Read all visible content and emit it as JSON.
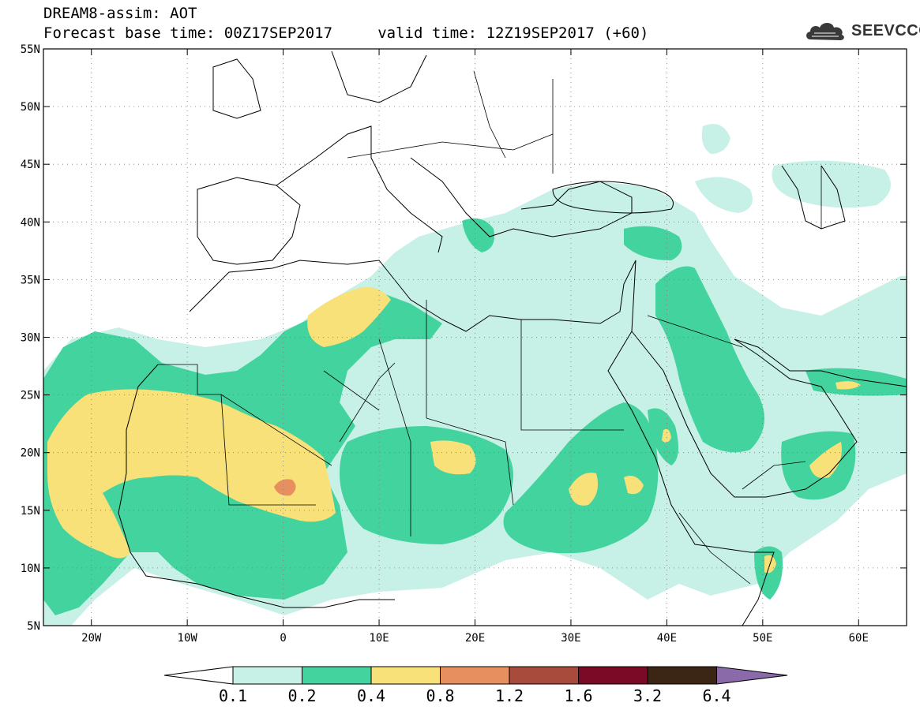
{
  "header": {
    "line1": "DREAM8-assim: AOT",
    "line2": "Forecast base time: 00Z17SEP2017     valid time: 12Z19SEP2017 (+60)"
  },
  "logo": {
    "icon": "cloud-icon",
    "text": "SEEVCCC"
  },
  "map": {
    "lon_range": [
      -25,
      65
    ],
    "lat_range": [
      5,
      55
    ],
    "lat_ticks": [
      {
        "value": 55,
        "label": "55N"
      },
      {
        "value": 50,
        "label": "50N"
      },
      {
        "value": 45,
        "label": "45N"
      },
      {
        "value": 40,
        "label": "40N"
      },
      {
        "value": 35,
        "label": "35N"
      },
      {
        "value": 30,
        "label": "30N"
      },
      {
        "value": 25,
        "label": "25N"
      },
      {
        "value": 20,
        "label": "20N"
      },
      {
        "value": 15,
        "label": "15N"
      },
      {
        "value": 10,
        "label": "10N"
      },
      {
        "value": 5,
        "label": "5N"
      }
    ],
    "lon_ticks": [
      {
        "value": -20,
        "label": "20W"
      },
      {
        "value": -10,
        "label": "10W"
      },
      {
        "value": 0,
        "label": "0"
      },
      {
        "value": 10,
        "label": "10E"
      },
      {
        "value": 20,
        "label": "20E"
      },
      {
        "value": 30,
        "label": "30E"
      },
      {
        "value": 40,
        "label": "40E"
      },
      {
        "value": 50,
        "label": "50E"
      },
      {
        "value": 60,
        "label": "60E"
      }
    ],
    "grid": "dotted"
  },
  "colorbar": {
    "levels": [
      "0.1",
      "0.2",
      "0.4",
      "0.8",
      "1.2",
      "1.6",
      "3.2",
      "6.4"
    ],
    "colors": [
      "#ffffff",
      "#c7f0e6",
      "#43d39e",
      "#f7e178",
      "#e88f5f",
      "#a84a3c",
      "#7a0a26",
      "#3b2615",
      "#8a6aa8"
    ]
  },
  "aot_colors": {
    "c01": "#c7f0e6",
    "c02": "#43d39e",
    "c04": "#f7e178",
    "c08": "#e88f5f"
  }
}
